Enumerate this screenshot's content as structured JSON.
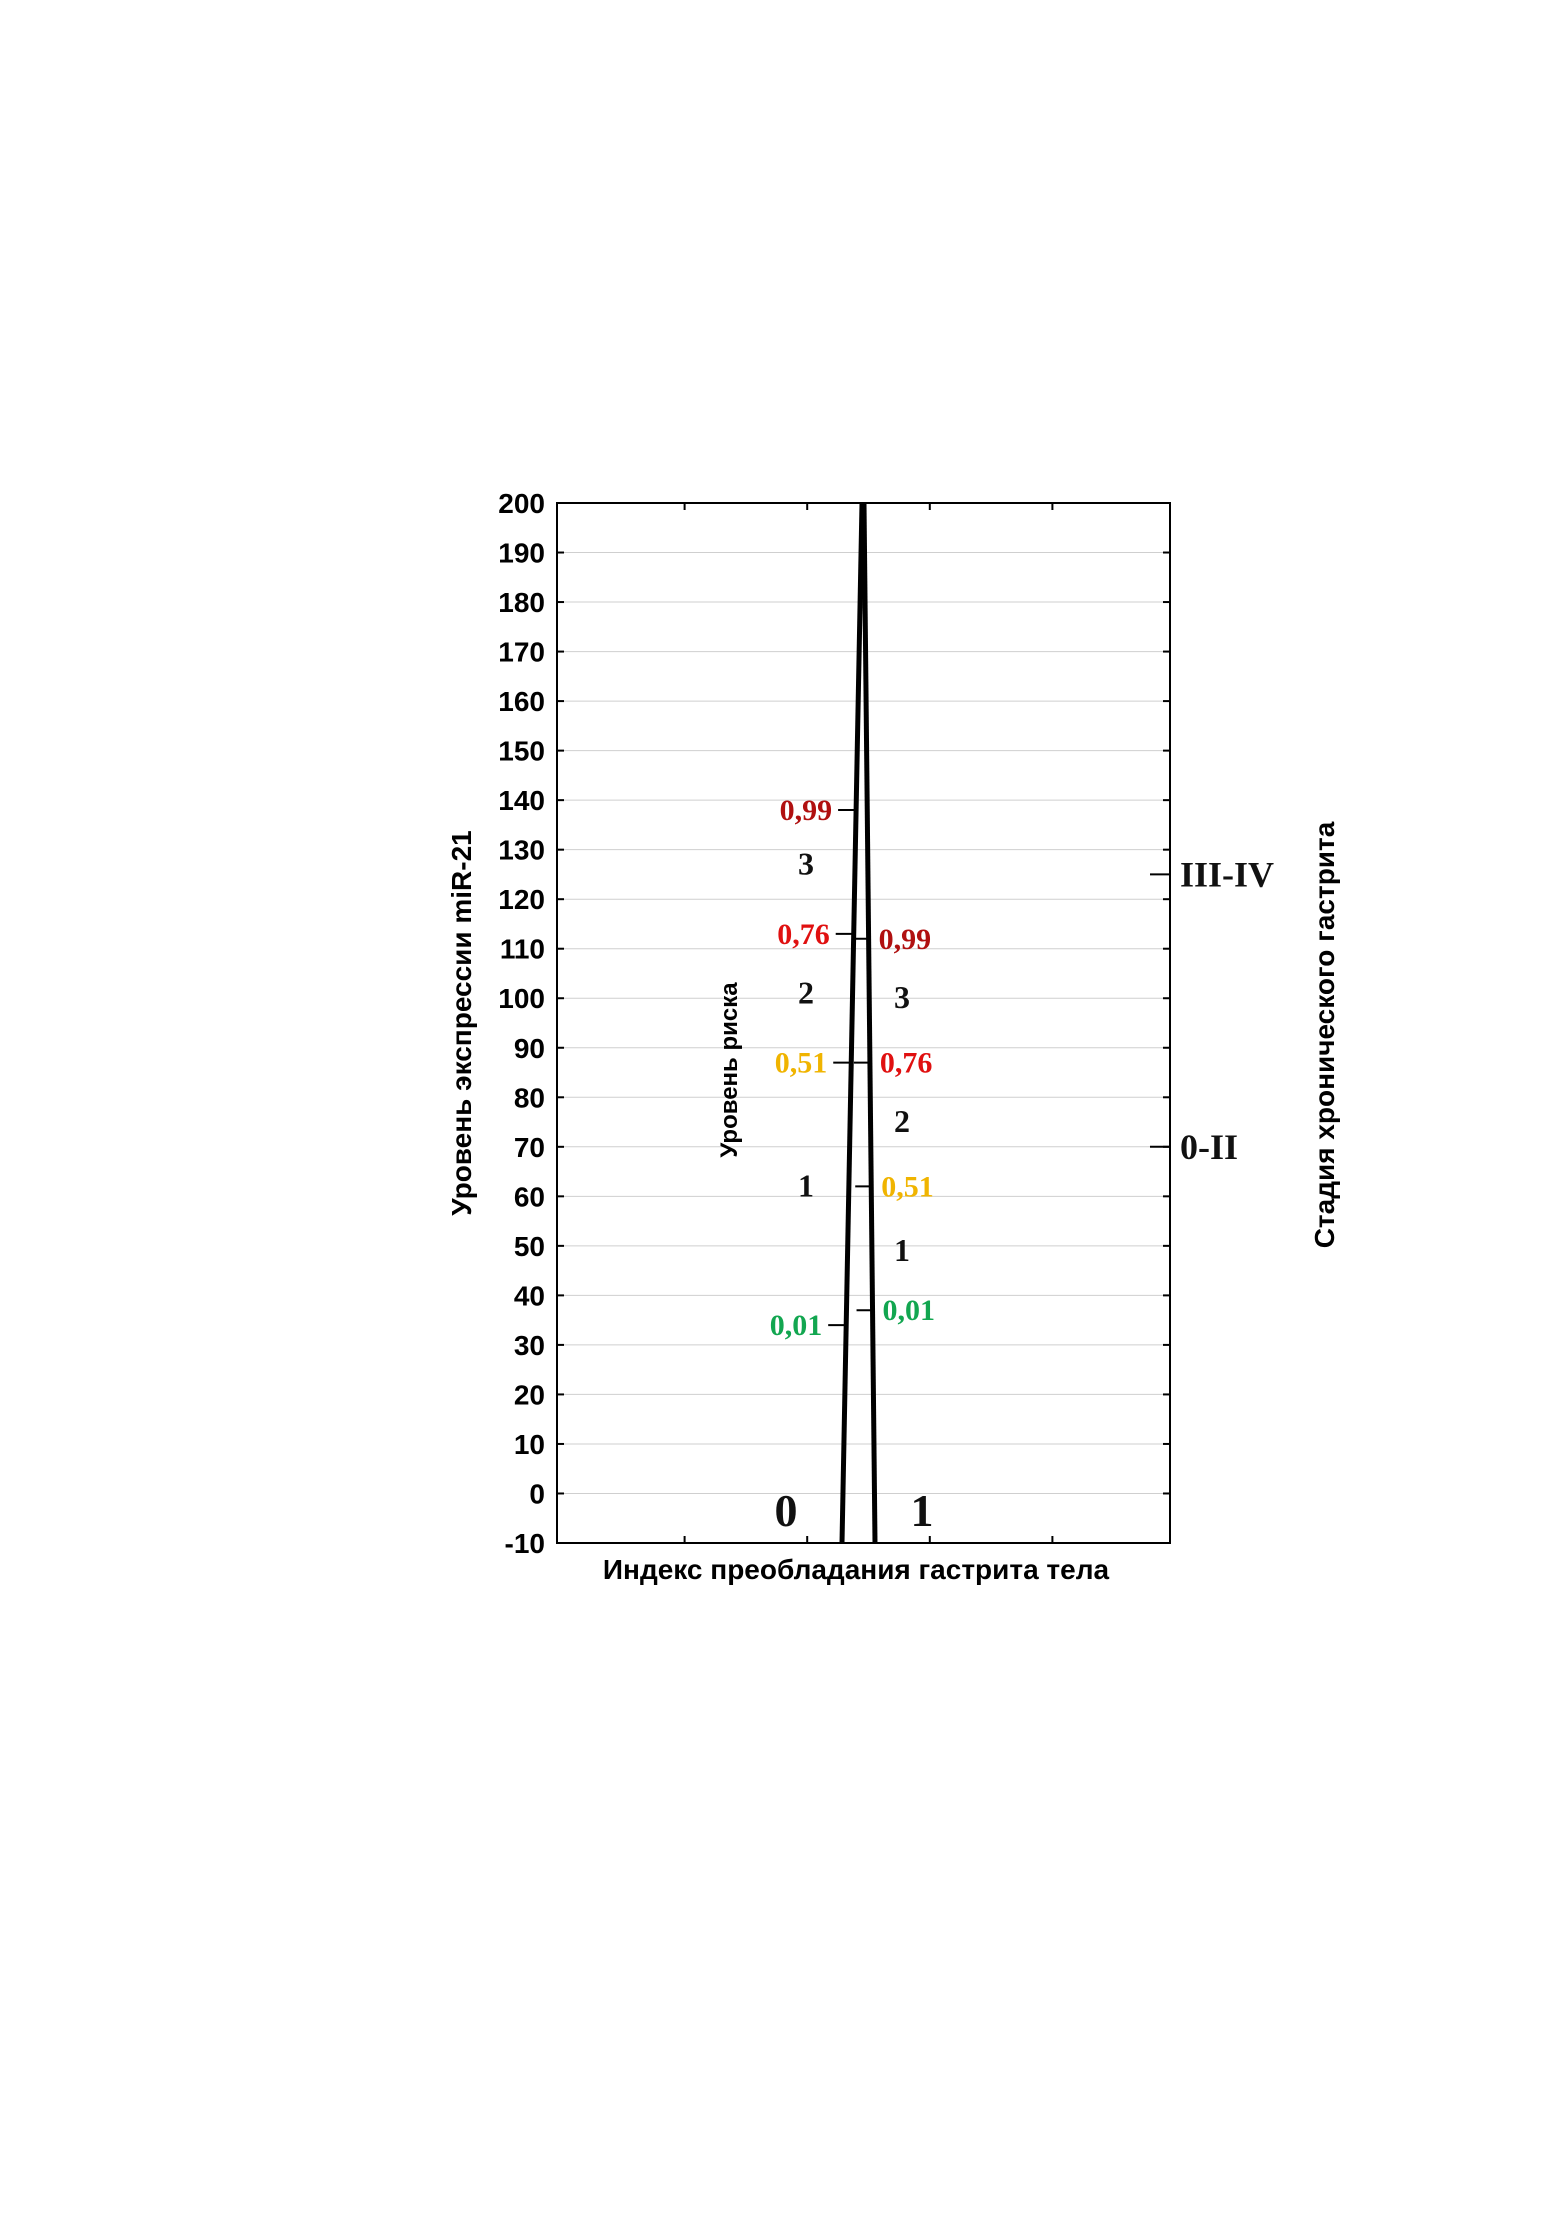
{
  "chart_data": {
    "type": "line",
    "ylabel": "Уровень экспрессии miR-21",
    "xlabel": "Индекс преобладания гастрита тела",
    "right_axis_label": "Стадия хронического гастрита",
    "inner_axis_label": "Уровень риска",
    "ylim": [
      -10,
      200
    ],
    "yticks": [
      "200",
      "190",
      "180",
      "170",
      "160",
      "150",
      "140",
      "130",
      "120",
      "110",
      "100",
      "90",
      "80",
      "70",
      "60",
      "50",
      "40",
      "30",
      "20",
      "10",
      "0",
      "-10"
    ],
    "ytick_values": [
      200,
      190,
      180,
      170,
      160,
      150,
      140,
      130,
      120,
      110,
      100,
      90,
      80,
      70,
      60,
      50,
      40,
      30,
      20,
      10,
      0,
      -10
    ],
    "grid": true,
    "group_labels": [
      "0",
      "1"
    ],
    "lines": [
      {
        "group": "0",
        "y_bottom": -10,
        "y_top": 200
      },
      {
        "group": "1",
        "y_bottom": -10,
        "y_top": 200
      }
    ],
    "left_scale": {
      "probability_marks": [
        {
          "label": "0,01",
          "y": 34,
          "color": "#12a650"
        },
        {
          "label": "0,51",
          "y": 87,
          "color": "#f0b400"
        },
        {
          "label": "0,76",
          "y": 113,
          "color": "#e01010"
        },
        {
          "label": "0,99",
          "y": 138,
          "color": "#b01010"
        }
      ],
      "risk_levels": [
        {
          "label": "1",
          "y": 62
        },
        {
          "label": "2",
          "y": 101
        },
        {
          "label": "3",
          "y": 127
        }
      ]
    },
    "right_scale": {
      "probability_marks": [
        {
          "label": "0,01",
          "y": 37,
          "color": "#12a650"
        },
        {
          "label": "0,51",
          "y": 62,
          "color": "#f0b400"
        },
        {
          "label": "0,76",
          "y": 87,
          "color": "#e01010"
        },
        {
          "label": "0,99",
          "y": 112,
          "color": "#b01010"
        }
      ],
      "risk_levels": [
        {
          "label": "1",
          "y": 49
        },
        {
          "label": "2",
          "y": 75
        },
        {
          "label": "3",
          "y": 100
        }
      ]
    },
    "stage_marks": [
      {
        "label": "III-IV",
        "y": 125
      },
      {
        "label": "0-II",
        "y": 70
      }
    ]
  }
}
